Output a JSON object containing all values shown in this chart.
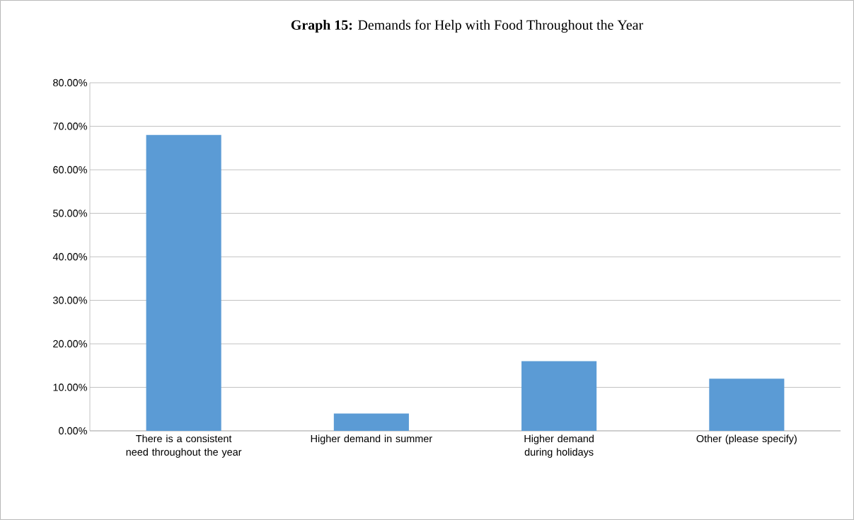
{
  "chart_data": {
    "type": "bar",
    "title": "**Graph 15:** Demands for Help with Food Throughout the Year",
    "categories": [
      "There is a consistent need throughout the year",
      "Higher demand in summer",
      "Higher demand during holidays",
      "Other (please specify)"
    ],
    "values": [
      68,
      4,
      16,
      12
    ],
    "color": "#5b9bd5",
    "ylim": [
      0,
      80
    ],
    "yticks": [
      {
        "value": 0,
        "label": "0.00%"
      },
      {
        "value": 10,
        "label": "10.00%"
      },
      {
        "value": 20,
        "label": "20.00%"
      },
      {
        "value": 30,
        "label": "30.00%"
      },
      {
        "value": 40,
        "label": "40.00%"
      },
      {
        "value": 50,
        "label": "50.00%"
      },
      {
        "value": 60,
        "label": "60.00%"
      },
      {
        "value": 70,
        "label": "70.00%"
      },
      {
        "value": 80,
        "label": "80.00%"
      }
    ],
    "grid": "y"
  }
}
